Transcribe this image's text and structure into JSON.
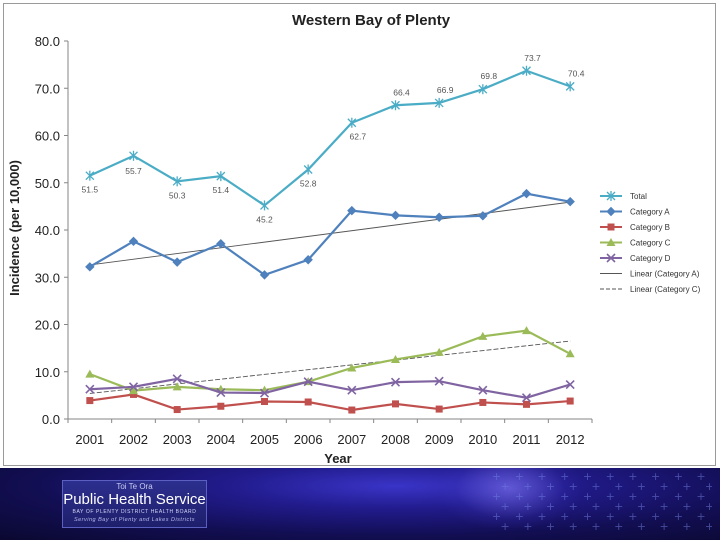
{
  "chart_data": {
    "type": "line",
    "title": "Western Bay of Plenty",
    "xlabel": "Year",
    "ylabel": "Incidence (per 10,000)",
    "ylim": [
      0,
      80
    ],
    "yticks": [
      "0.0",
      "10.0",
      "20.0",
      "30.0",
      "40.0",
      "50.0",
      "60.0",
      "70.0",
      "80.0"
    ],
    "categories": [
      "2001",
      "2002",
      "2003",
      "2004",
      "2005",
      "2006",
      "2007",
      "2008",
      "2009",
      "2010",
      "2011",
      "2012"
    ],
    "legend_position": "right",
    "series": [
      {
        "name": "Total",
        "color": "#4bacc6",
        "marker": "star",
        "values": [
          51.5,
          55.7,
          50.3,
          51.4,
          45.2,
          52.8,
          62.7,
          66.4,
          66.9,
          69.8,
          73.7,
          70.4
        ],
        "labels": [
          "51.5",
          "55.7",
          "50.3",
          "51.4",
          "45.2",
          "52.8",
          "62.7",
          "66.4",
          "66.9",
          "69.8",
          "73.7",
          "70.4"
        ]
      },
      {
        "name": "Category A",
        "color": "#4f81bd",
        "marker": "diamond",
        "values": [
          32.2,
          37.6,
          33.2,
          37.1,
          30.5,
          33.7,
          44.1,
          43.1,
          42.7,
          43.0,
          47.7,
          46.0
        ]
      },
      {
        "name": "Category B",
        "color": "#c0504d",
        "marker": "square",
        "values": [
          3.9,
          5.2,
          2.0,
          2.7,
          3.7,
          3.6,
          1.9,
          3.2,
          2.1,
          3.5,
          3.1,
          3.8
        ]
      },
      {
        "name": "Category C",
        "color": "#9bbb59",
        "marker": "triangle",
        "values": [
          9.5,
          6.0,
          6.8,
          6.3,
          6.1,
          7.9,
          10.8,
          12.6,
          14.1,
          17.5,
          18.7,
          13.8
        ]
      },
      {
        "name": "Category D",
        "color": "#8064a2",
        "marker": "x",
        "values": [
          6.3,
          6.8,
          8.5,
          5.6,
          5.5,
          7.9,
          6.1,
          7.8,
          8.0,
          6.1,
          4.5,
          7.3
        ]
      }
    ],
    "trendlines": [
      {
        "name": "Linear (Category A)",
        "color": "#555555",
        "start": 32.6,
        "end": 45.9
      },
      {
        "name": "Linear (Category C)",
        "color": "#555555",
        "start": 5.4,
        "end": 16.5
      }
    ]
  },
  "footer": {
    "logo_top": "Toi Te Ora",
    "logo_main": "Public Health Service",
    "logo_sub": "BAY OF PLENTY DISTRICT HEALTH BOARD",
    "logo_tagline": "Serving Bay of Plenty and Lakes Districts"
  }
}
